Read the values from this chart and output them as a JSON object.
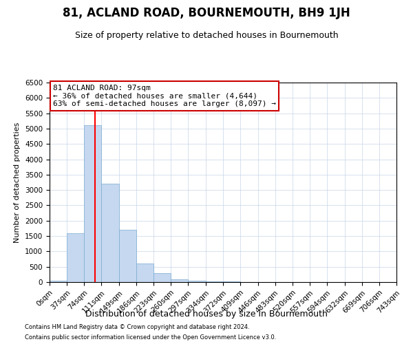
{
  "title": "81, ACLAND ROAD, BOURNEMOUTH, BH9 1JH",
  "subtitle": "Size of property relative to detached houses in Bournemouth",
  "xlabel": "Distribution of detached houses by size in Bournemouth",
  "ylabel": "Number of detached properties",
  "bin_edges": [
    0,
    37,
    74,
    111,
    149,
    186,
    223,
    260,
    297,
    334,
    372,
    409,
    446,
    483,
    520,
    557,
    594,
    632,
    669,
    706,
    743
  ],
  "bar_heights": [
    50,
    1600,
    5100,
    3200,
    1700,
    600,
    300,
    100,
    50,
    30,
    15,
    5,
    3,
    2,
    1,
    1,
    0,
    0,
    0,
    0
  ],
  "bar_color": "#c5d8f0",
  "bar_edge_color": "#7aaad0",
  "grid_color": "#c8d4e8",
  "red_line_x": 97,
  "annotation_line1": "81 ACLAND ROAD: 97sqm",
  "annotation_line2": "← 36% of detached houses are smaller (4,644)",
  "annotation_line3": "63% of semi-detached houses are larger (8,097) →",
  "annotation_box_color": "#ffffff",
  "annotation_border_color": "#cc0000",
  "ylim": [
    0,
    6500
  ],
  "yticks": [
    0,
    500,
    1000,
    1500,
    2000,
    2500,
    3000,
    3500,
    4000,
    4500,
    5000,
    5500,
    6000,
    6500
  ],
  "footer_line1": "Contains HM Land Registry data © Crown copyright and database right 2024.",
  "footer_line2": "Contains public sector information licensed under the Open Government Licence v3.0.",
  "bg_color": "#ffffff",
  "tick_label_fontsize": 7.5,
  "title_fontsize": 12,
  "subtitle_fontsize": 9,
  "ylabel_fontsize": 8,
  "xlabel_fontsize": 9
}
